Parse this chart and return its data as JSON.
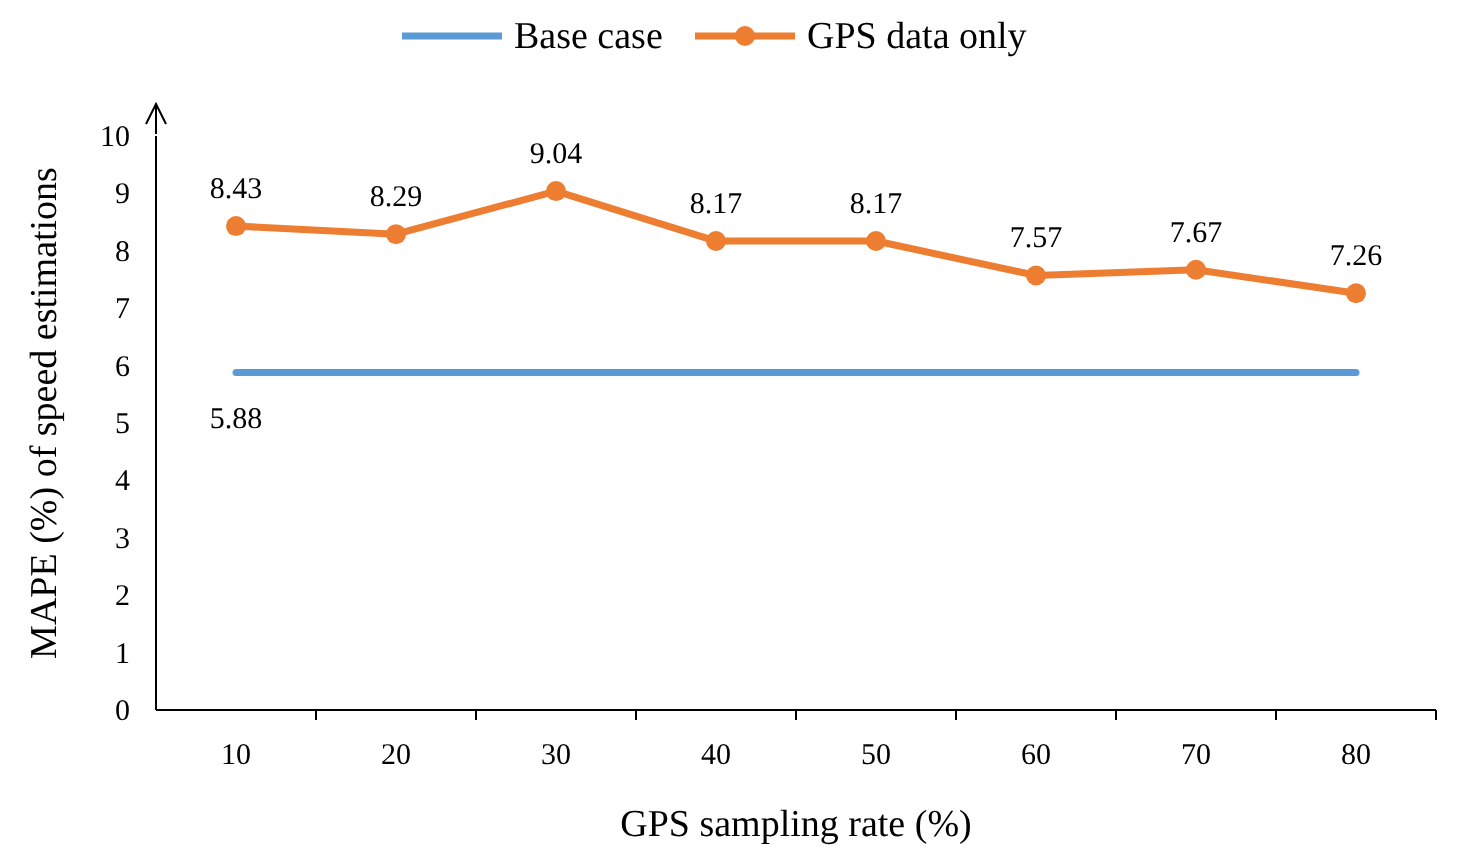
{
  "chart_data": {
    "type": "line",
    "xlabel": "GPS sampling rate (%)",
    "ylabel": "MAPE (%) of speed estimations",
    "categories": [
      "10",
      "20",
      "30",
      "40",
      "50",
      "60",
      "70",
      "80"
    ],
    "ylim": [
      0,
      10
    ],
    "yticks": [
      0,
      1,
      2,
      3,
      4,
      5,
      6,
      7,
      8,
      9,
      10
    ],
    "grid": false,
    "legend": "top",
    "series": [
      {
        "name": "Base case",
        "color": "#5b9bd5",
        "marker": "none",
        "values": [
          5.88,
          5.88,
          5.88,
          5.88,
          5.88,
          5.88,
          5.88,
          5.88
        ],
        "value_labels": [
          "5.88",
          null,
          null,
          null,
          null,
          null,
          null,
          null
        ]
      },
      {
        "name": "GPS data only",
        "color": "#ed7d31",
        "marker": "circle",
        "values": [
          8.43,
          8.29,
          9.04,
          8.17,
          8.17,
          7.57,
          7.67,
          7.26
        ],
        "value_labels": [
          "8.43",
          "8.29",
          "9.04",
          "8.17",
          "8.17",
          "7.57",
          "7.67",
          "7.26"
        ]
      }
    ]
  }
}
